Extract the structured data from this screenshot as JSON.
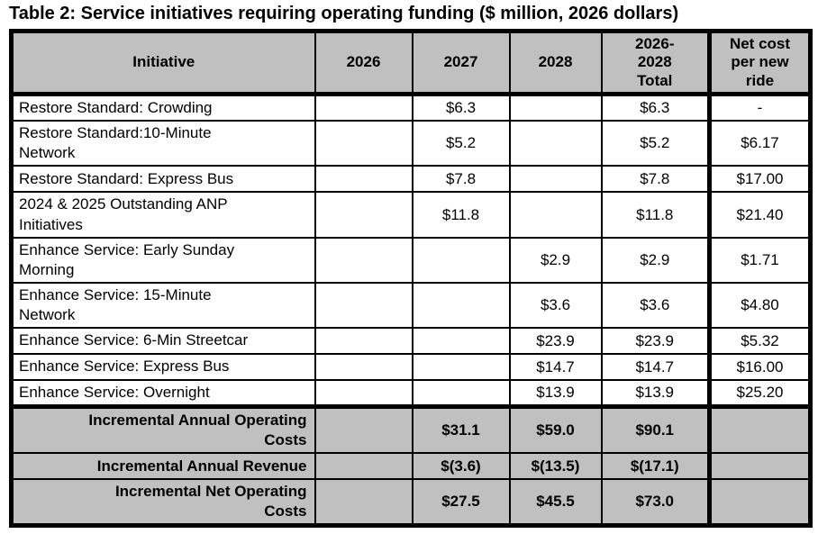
{
  "title": "Table 2: Service initiatives requiring operating funding ($ million, 2026 dollars)",
  "colors": {
    "header_bg": "#c0c0c0",
    "summary_bg": "#c0c0c0",
    "border": "#000000",
    "text": "#000000",
    "body_bg": "#ffffff"
  },
  "table": {
    "columns": {
      "initiative": "Initiative",
      "y2026": "2026",
      "y2027": "2027",
      "y2028": "2028",
      "total": "2026-\n2028\nTotal",
      "net_cost": "Net cost\nper new\nride"
    },
    "rows": [
      {
        "initiative": "Restore Standard: Crowding",
        "y2026": "",
        "y2027": "$6.3",
        "y2028": "",
        "total": "$6.3",
        "net_cost": "-"
      },
      {
        "initiative": "Restore Standard:10-Minute\nNetwork",
        "y2026": "",
        "y2027": "$5.2",
        "y2028": "",
        "total": "$5.2",
        "net_cost": "$6.17"
      },
      {
        "initiative": "Restore Standard: Express Bus",
        "y2026": "",
        "y2027": "$7.8",
        "y2028": "",
        "total": "$7.8",
        "net_cost": "$17.00"
      },
      {
        "initiative": "2024 & 2025 Outstanding ANP\nInitiatives",
        "y2026": "",
        "y2027": "$11.8",
        "y2028": "",
        "total": "$11.8",
        "net_cost": "$21.40"
      },
      {
        "initiative": "Enhance Service: Early Sunday\nMorning",
        "y2026": "",
        "y2027": "",
        "y2028": "$2.9",
        "total": "$2.9",
        "net_cost": "$1.71"
      },
      {
        "initiative": "Enhance Service: 15-Minute\nNetwork",
        "y2026": "",
        "y2027": "",
        "y2028": "$3.6",
        "total": "$3.6",
        "net_cost": "$4.80"
      },
      {
        "initiative": "Enhance Service: 6-Min Streetcar",
        "y2026": "",
        "y2027": "",
        "y2028": "$23.9",
        "total": "$23.9",
        "net_cost": "$5.32"
      },
      {
        "initiative": "Enhance Service: Express Bus",
        "y2026": "",
        "y2027": "",
        "y2028": "$14.7",
        "total": "$14.7",
        "net_cost": "$16.00"
      },
      {
        "initiative": "Enhance Service: Overnight",
        "y2026": "",
        "y2027": "",
        "y2028": "$13.9",
        "total": "$13.9",
        "net_cost": "$25.20"
      }
    ],
    "summary_rows": [
      {
        "label": "Incremental Annual Operating\nCosts",
        "y2026": "",
        "y2027": "$31.1",
        "y2028": "$59.0",
        "total": "$90.1",
        "net_cost": ""
      },
      {
        "label": "Incremental Annual Revenue",
        "y2026": "",
        "y2027": "$(3.6)",
        "y2028": "$(13.5)",
        "total": "$(17.1)",
        "net_cost": ""
      },
      {
        "label": "Incremental Net Operating\nCosts",
        "y2026": "",
        "y2027": "$27.5",
        "y2028": "$45.5",
        "total": "$73.0",
        "net_cost": ""
      }
    ]
  }
}
